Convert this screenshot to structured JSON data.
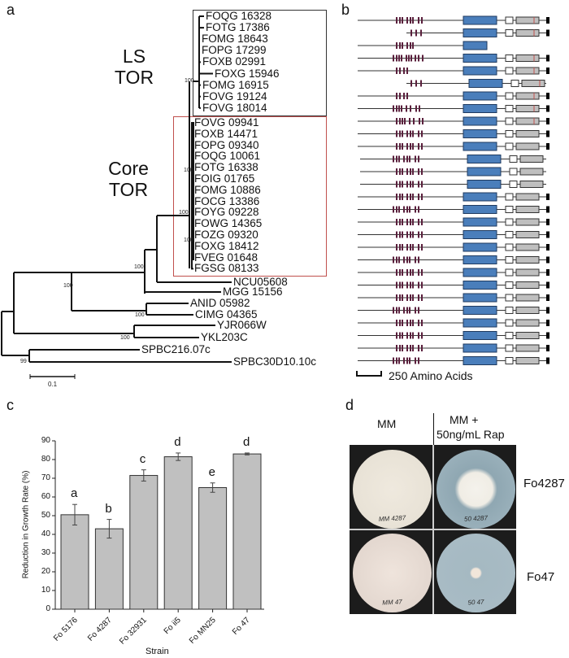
{
  "panel_letters": [
    "a",
    "b",
    "c",
    "d"
  ],
  "tree": {
    "group_ls": "LS\nTOR",
    "group_core": "Core\nTOR",
    "ls_leaves": [
      "FOQG 16328",
      "FOTG 17386",
      "FOMG 18643",
      "FOPG 17299",
      "FOXB 02991",
      "FOXG 15946",
      "FOMG 16915",
      "FOVG 19124",
      "FOVG 18014"
    ],
    "core_leaves": [
      "FOVG 09941",
      "FOXB 14471",
      "FOPG 09340",
      "FOQG 10061",
      "FOTG 16338",
      "FOIG 01765",
      "FOMG 10886",
      "FOCG 13386",
      "FOYG 09228",
      "FOWG 14365",
      "FOZG 09320",
      "FOXG 18412",
      "FVEG 01648",
      "FGSG 08133"
    ],
    "outgroup_leaves": [
      "NCU05608",
      "MGG 15156",
      "ANID 05982",
      "CIMG 04365",
      "YJR066W",
      "YKL203C",
      "SPBC216.07c",
      "SPBC30D10.10c"
    ],
    "bootstrap": [
      "100",
      "100",
      "100",
      "100",
      "100",
      "100",
      "100",
      "100",
      "99"
    ],
    "scale_label": "0.1",
    "colors": {
      "ls_box": "#333333",
      "core_box": "#c0504d"
    }
  },
  "domains": {
    "row_count": 28,
    "ls_rows": 9,
    "scale_label": "250 Amino Acids",
    "colors": {
      "heat": "#5a1f3c",
      "fat": "#4a7ebb",
      "frb": "#ffffff",
      "kinase": "#bfbfbf",
      "fatc": "#000000",
      "mark": "#c0504d"
    }
  },
  "chart_data": {
    "type": "bar",
    "title": "",
    "xlabel": "Strain",
    "ylabel": "Reduction in Growth Rate (%)",
    "ylim": [
      0,
      90
    ],
    "yticks": [
      0,
      10,
      20,
      30,
      40,
      50,
      60,
      70,
      80,
      90
    ],
    "categories": [
      "Fo 5176",
      "Fo 4287",
      "Fo 32931",
      "Fo ii5",
      "Fo MN25",
      "Fo 47"
    ],
    "values": [
      50.5,
      43,
      71.5,
      81.5,
      65,
      83
    ],
    "errors": [
      5.5,
      5,
      3,
      2,
      2.5,
      0.5
    ],
    "significance_letters": [
      "a",
      "b",
      "c",
      "d",
      "e",
      "d"
    ],
    "bar_color": "#c0c0c0",
    "grid": false
  },
  "plates": {
    "col_headers": [
      "MM",
      "MM +",
      "50ng/mL Rap"
    ],
    "row_labels": [
      "Fo4287",
      "Fo47"
    ],
    "handwriting": [
      "MM 4287",
      "50 4287",
      "MM 47",
      "50 47"
    ]
  }
}
